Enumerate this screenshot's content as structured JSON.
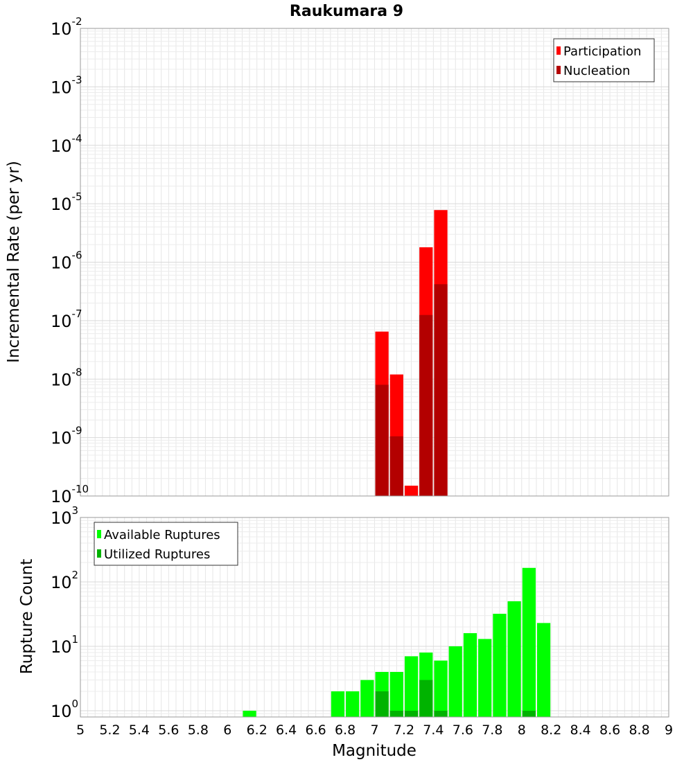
{
  "chart_data": {
    "title": "Raukumara 9",
    "xlabel": "Magnitude",
    "xlim": [
      5,
      9
    ],
    "xticks": [
      "5",
      "5.2",
      "5.4",
      "5.6",
      "5.8",
      "6",
      "6.2",
      "6.4",
      "6.6",
      "6.8",
      "7",
      "7.2",
      "7.4",
      "7.6",
      "7.8",
      "8",
      "8.2",
      "8.4",
      "8.6",
      "8.8",
      "9"
    ],
    "bin_width": 0.1,
    "panels": [
      {
        "type": "bar",
        "ylabel": "Incremental Rate (per yr)",
        "yscale": "log",
        "ylim": [
          1e-10,
          0.01
        ],
        "ytick_exponents": [
          -2,
          -3,
          -4,
          -5,
          -6,
          -7,
          -8,
          -9,
          -10
        ],
        "grid": true,
        "legend_position": "top-right",
        "series": [
          {
            "name": "Participation",
            "color": "#ff0000",
            "x": [
              7.05,
              7.15,
              7.25,
              7.35,
              7.45
            ],
            "values": [
              6.5e-08,
              1.2e-08,
              1.5e-10,
              1.8e-06,
              7.8e-06
            ]
          },
          {
            "name": "Nucleation",
            "color": "#b30000",
            "x": [
              7.05,
              7.15,
              7.25,
              7.35,
              7.45
            ],
            "values": [
              8e-09,
              1.05e-09,
              0,
              1.25e-07,
              4.2e-07
            ]
          }
        ]
      },
      {
        "type": "bar",
        "ylabel": "Rupture Count",
        "yscale": "log",
        "ylim": [
          0.8,
          1000
        ],
        "ytick_exponents": [
          3,
          2,
          1,
          0
        ],
        "grid": true,
        "legend_position": "top-left",
        "series": [
          {
            "name": "Available Ruptures",
            "color": "#00ff00",
            "x": [
              6.15,
              6.75,
              6.85,
              6.95,
              7.05,
              7.15,
              7.25,
              7.35,
              7.45,
              7.55,
              7.65,
              7.75,
              7.85,
              7.95,
              8.05,
              8.15
            ],
            "values": [
              1,
              2,
              2,
              3,
              4,
              4,
              7,
              8,
              6,
              10,
              16,
              13,
              32,
              50,
              165,
              23
            ]
          },
          {
            "name": "Utilized Ruptures",
            "color": "#00b300",
            "x": [
              7.05,
              7.15,
              7.25,
              7.35,
              7.45,
              8.05
            ],
            "values": [
              2,
              1,
              1,
              3,
              1,
              1
            ]
          }
        ]
      }
    ]
  }
}
